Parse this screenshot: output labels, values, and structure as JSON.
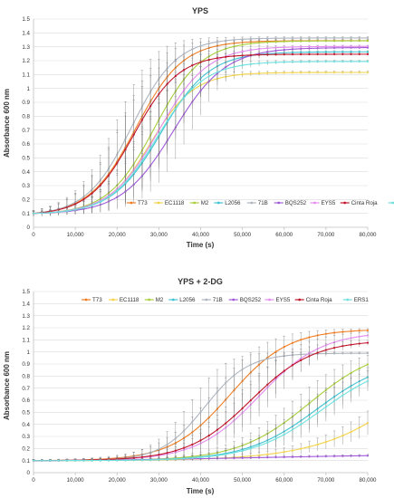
{
  "series_colors": {
    "T73": "#f07d22",
    "EC1118": "#f2d24b",
    "M2": "#a8cf3a",
    "L2056": "#3fc3d4",
    "71B": "#aeb5bf",
    "BQS252": "#a05ad8",
    "EYS5": "#e48cf0",
    "Cinta Roja": "#c0172c",
    "ERS1": "#6fe0dd"
  },
  "chart_data": [
    {
      "type": "line",
      "title": "YPS",
      "xlabel": "Time (s)",
      "ylabel": "Absorbance 600 nm",
      "xlim": [
        0,
        80000
      ],
      "ylim": [
        0,
        1.5
      ],
      "x_ticks": [
        "0",
        "10,000",
        "20,000",
        "30,000",
        "40,000",
        "50,000",
        "60,000",
        "70,000",
        "80,000"
      ],
      "y_ticks": [
        "0",
        "0.1",
        "0.2",
        "0.3",
        "0.4",
        "0.5",
        "0.6",
        "0.7",
        "0.8",
        "0.9",
        "1",
        "1.1",
        "1.2",
        "1.3",
        "1.4",
        "1.5"
      ],
      "legend_position": "lower-right",
      "series": [
        {
          "name": "T73",
          "plateau": 1.36,
          "midpoint": 24500,
          "steepness": 5600
        },
        {
          "name": "EC1118",
          "plateau": 1.12,
          "midpoint": 28000,
          "steepness": 5200
        },
        {
          "name": "M2",
          "plateau": 1.35,
          "midpoint": 29000,
          "steepness": 5600
        },
        {
          "name": "L2056",
          "plateau": 1.27,
          "midpoint": 30500,
          "steepness": 5800
        },
        {
          "name": "71B",
          "plateau": 1.38,
          "midpoint": 23500,
          "steepness": 5400
        },
        {
          "name": "BQS252",
          "plateau": 1.3,
          "midpoint": 33500,
          "steepness": 6200
        },
        {
          "name": "EYS5",
          "plateau": 1.31,
          "midpoint": 30000,
          "steepness": 5800
        },
        {
          "name": "Cinta Roja",
          "plateau": 1.26,
          "midpoint": 24000,
          "steepness": 5400
        },
        {
          "name": "ERS1",
          "plateau": 1.2,
          "midpoint": 29500,
          "steepness": 5600
        }
      ]
    },
    {
      "type": "line",
      "title": "YPS + 2-DG",
      "xlabel": "Time (s)",
      "ylabel": "Absorbance 600 nm",
      "xlim": [
        0,
        80000
      ],
      "ylim": [
        0,
        1.5
      ],
      "x_ticks": [
        "0",
        "10,000",
        "20,000",
        "30,000",
        "40,000",
        "50,000",
        "60,000",
        "70,000",
        "80,000"
      ],
      "y_ticks": [
        "0",
        "0.1",
        "0.2",
        "0.3",
        "0.4",
        "0.5",
        "0.6",
        "0.7",
        "0.8",
        "0.9",
        "1",
        "1.1",
        "1.2",
        "1.3",
        "1.4",
        "1.5"
      ],
      "legend_position": "top",
      "series": [
        {
          "name": "T73",
          "plateau": 1.19,
          "midpoint": 47000,
          "steepness": 7000
        },
        {
          "name": "EC1118",
          "plateau": 1.5,
          "midpoint": 95000,
          "steepness": 12000
        },
        {
          "name": "M2",
          "plateau": 1.05,
          "midpoint": 66000,
          "steepness": 8500
        },
        {
          "name": "L2056",
          "plateau": 0.96,
          "midpoint": 68000,
          "steepness": 8500
        },
        {
          "name": "71B",
          "plateau": 0.99,
          "midpoint": 41000,
          "steepness": 5200
        },
        {
          "name": "BQS252",
          "plateau": 0.16,
          "midpoint": 55000,
          "steepness": 22000
        },
        {
          "name": "EYS5",
          "plateau": 1.17,
          "midpoint": 54000,
          "steepness": 7500
        },
        {
          "name": "Cinta Roja",
          "plateau": 1.1,
          "midpoint": 52000,
          "steepness": 7500
        },
        {
          "name": "ERS1",
          "plateau": 0.94,
          "midpoint": 69000,
          "steepness": 8500
        }
      ]
    }
  ]
}
